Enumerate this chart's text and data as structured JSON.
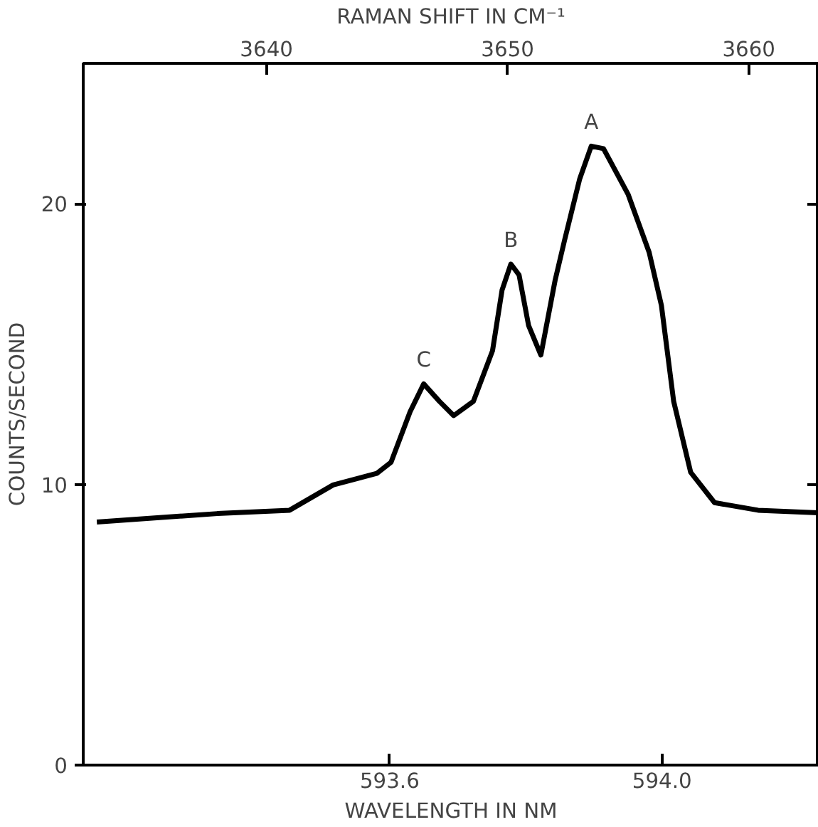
{
  "chart_data": {
    "type": "line",
    "xlabel": "WAVELENGTH IN NM",
    "ylabel": "COUNTS/SECOND",
    "x2label": "RAMAN SHIFT IN CM⁻¹",
    "x": [
      593.17,
      593.347,
      593.453,
      593.517,
      593.581,
      593.602,
      593.63,
      593.65,
      593.673,
      593.694,
      593.723,
      593.751,
      593.765,
      593.778,
      593.79,
      593.804,
      593.822,
      593.843,
      593.857,
      593.879,
      593.896,
      593.914,
      593.95,
      593.981,
      593.999,
      594.017,
      594.042,
      594.077,
      594.141,
      594.23
    ],
    "series": [
      {
        "color": "#000000",
        "values": [
          8.66,
          8.96,
          9.08,
          9.98,
          10.39,
          10.79,
          12.59,
          13.58,
          12.96,
          12.45,
          12.96,
          14.76,
          16.92,
          17.85,
          17.46,
          15.66,
          14.61,
          17.28,
          18.72,
          20.88,
          22.05,
          21.96,
          20.34,
          18.27,
          16.38,
          12.96,
          10.43,
          9.35,
          9.08,
          8.99
        ]
      }
    ],
    "xlim": [
      593.15,
      594.23
    ],
    "xticks": [
      593.6,
      {
        "value": 594.0,
        "label": "594.0"
      }
    ],
    "x2lim": [
      3632.4,
      3662.9
    ],
    "x2ticks": [
      3640,
      3650,
      3660
    ],
    "ylim": [
      0,
      25
    ],
    "yticks": [
      0,
      10,
      20
    ],
    "annotations": [
      {
        "text": "A",
        "x": 593.896,
        "y": 22.05
      },
      {
        "text": "B",
        "x": 593.778,
        "y": 17.85
      },
      {
        "text": "C",
        "x": 593.65,
        "y": 13.58
      }
    ],
    "grid": false,
    "marker": "none",
    "line_style": "solid"
  }
}
